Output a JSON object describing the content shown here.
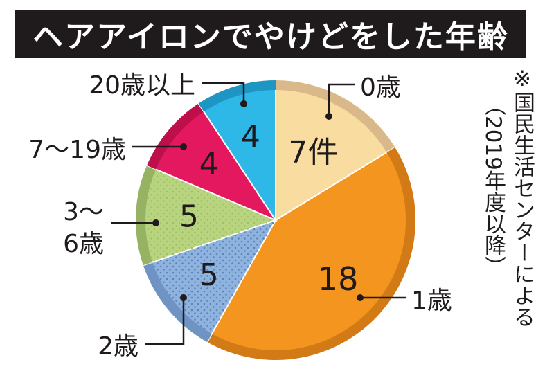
{
  "title": "ヘアアイロンでやけどをした年齢",
  "note": {
    "mark": "※",
    "line1": "国民生活センターによる",
    "line2": "（2019年度以降）"
  },
  "chart_data": {
    "type": "pie",
    "title": "ヘアアイロンでやけどをした年齢",
    "slices": [
      {
        "label": "0歳",
        "value": 7,
        "value_label": "7件",
        "color": "#f8dca0",
        "rim": "#d9b98a"
      },
      {
        "label": "1歳",
        "value": 18,
        "value_label": "18",
        "color": "#f4951f",
        "rim": "#d27a16"
      },
      {
        "label": "2歳",
        "value": 5,
        "value_label": "5",
        "color": "#8eb3df",
        "rim": "#6f93c2"
      },
      {
        "label": "3～\n6歳",
        "value": 5,
        "value_label": "5",
        "color": "#b8d47e",
        "rim": "#96b364"
      },
      {
        "label": "7～19歳",
        "value": 4,
        "value_label": "4",
        "color": "#e4185e",
        "rim": "#bd0f49"
      },
      {
        "label": "20歳以上",
        "value": 4,
        "value_label": "4",
        "color": "#2db8e8",
        "rim": "#1e95c2"
      }
    ],
    "start_angle_deg": 0,
    "direction": "clockwise"
  }
}
